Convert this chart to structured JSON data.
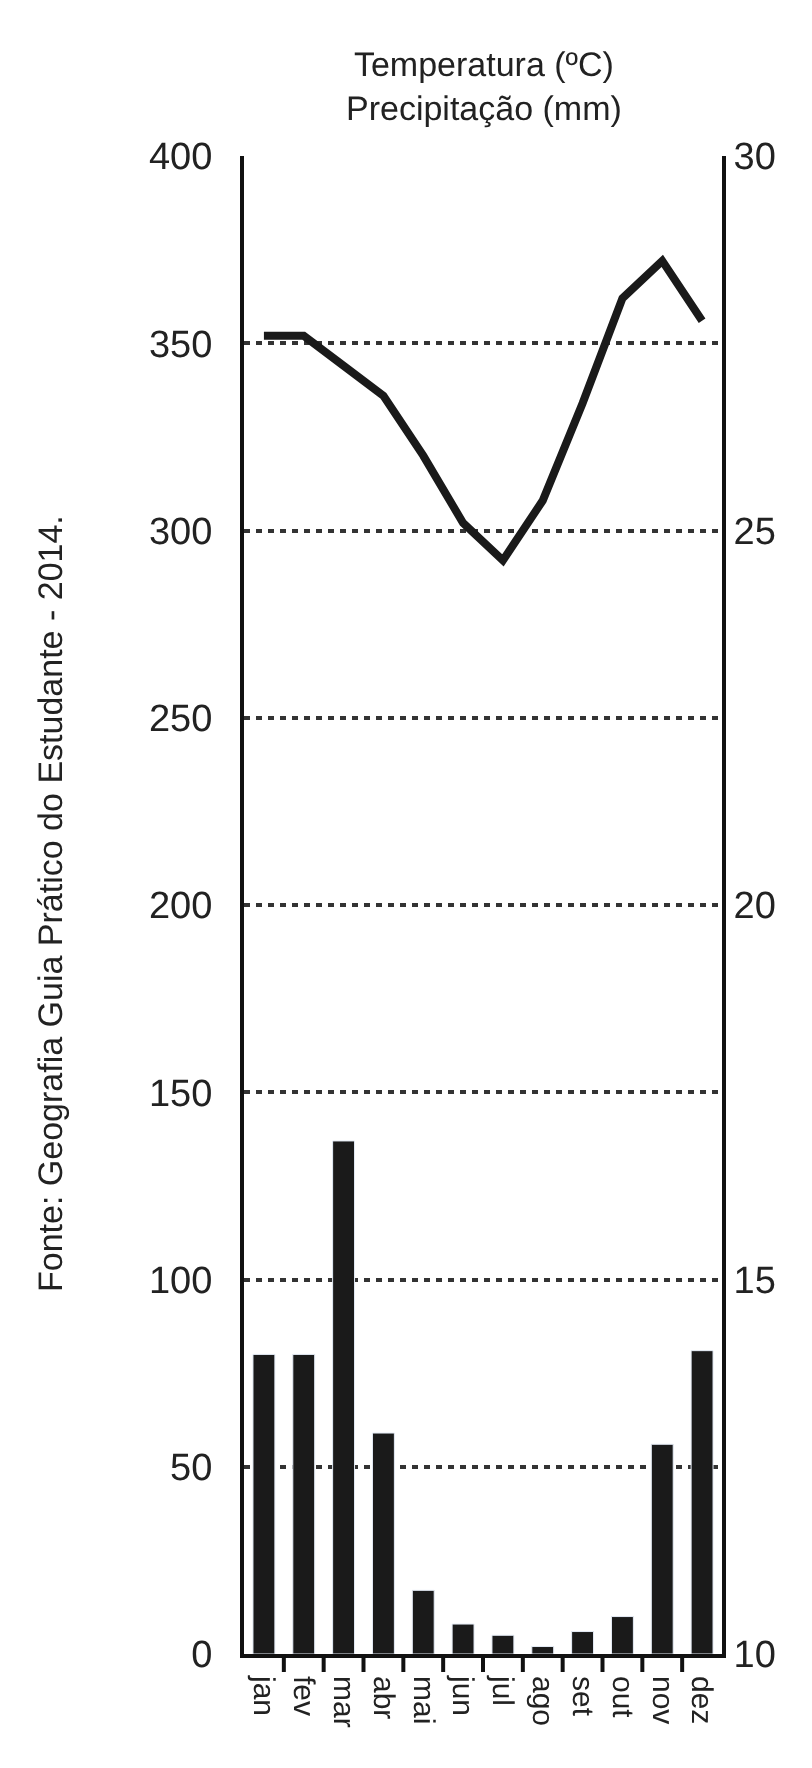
{
  "chart_data": {
    "type": "bar",
    "title": "Temperatura (ºC)",
    "subtitle": "Precipitação (mm)",
    "categories": [
      "jan",
      "fev",
      "mar",
      "abr",
      "mai",
      "jun",
      "jul",
      "ago",
      "set",
      "out",
      "nov",
      "dez"
    ],
    "series": [
      {
        "color": "#1a1a1a",
        "values": [
          80,
          80,
          137,
          59,
          17,
          8,
          5,
          2,
          6,
          10,
          56,
          81
        ]
      },
      {
        "type": "line",
        "axis": "y2",
        "color": "#1a1a1a",
        "values": [
          27.6,
          27.6,
          27.2,
          26.8,
          26.0,
          25.1,
          24.6,
          25.4,
          26.7,
          28.1,
          28.6,
          27.8
        ]
      }
    ],
    "ylim": [
      0,
      400
    ],
    "yticks": [
      0,
      50,
      100,
      150,
      200,
      250,
      300,
      350,
      400
    ],
    "y2lim": [
      10,
      30
    ],
    "y2ticks": [
      10,
      15,
      20,
      25,
      30
    ],
    "grid": "y",
    "marker": "none",
    "line_style": "solid",
    "annotations": [
      "Fonte: Geografia Guia Prático do Estudante - 2014."
    ]
  }
}
